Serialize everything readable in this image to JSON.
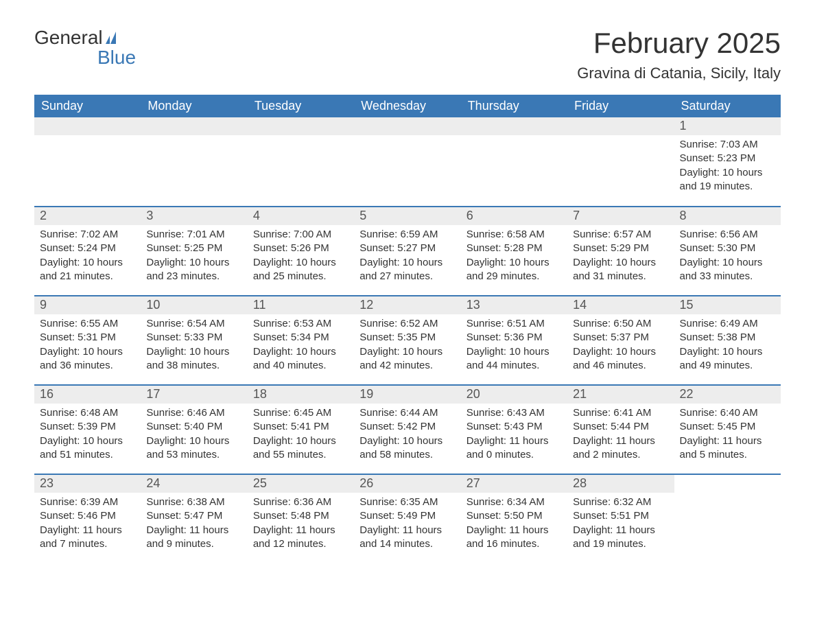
{
  "brand": {
    "word1": "General",
    "word2": "Blue",
    "accent_color": "#3a78b5"
  },
  "title": "February 2025",
  "location": "Gravina di Catania, Sicily, Italy",
  "weekdays": [
    "Sunday",
    "Monday",
    "Tuesday",
    "Wednesday",
    "Thursday",
    "Friday",
    "Saturday"
  ],
  "colors": {
    "header_bg": "#3a78b5",
    "header_text": "#ffffff",
    "row_divider": "#3a78b5",
    "daynum_bg": "#ededed",
    "body_text": "#333333",
    "page_bg": "#ffffff"
  },
  "typography": {
    "title_fontsize": 42,
    "location_fontsize": 22,
    "weekday_fontsize": 18,
    "daynum_fontsize": 18,
    "body_fontsize": 15
  },
  "layout": {
    "columns": 7,
    "rows": 5,
    "first_day_column_index": 6,
    "days_in_month": 28
  },
  "labels": {
    "sunrise": "Sunrise:",
    "sunset": "Sunset:",
    "daylight": "Daylight:"
  },
  "days": [
    {
      "n": 1,
      "sunrise": "7:03 AM",
      "sunset": "5:23 PM",
      "daylight": "10 hours and 19 minutes."
    },
    {
      "n": 2,
      "sunrise": "7:02 AM",
      "sunset": "5:24 PM",
      "daylight": "10 hours and 21 minutes."
    },
    {
      "n": 3,
      "sunrise": "7:01 AM",
      "sunset": "5:25 PM",
      "daylight": "10 hours and 23 minutes."
    },
    {
      "n": 4,
      "sunrise": "7:00 AM",
      "sunset": "5:26 PM",
      "daylight": "10 hours and 25 minutes."
    },
    {
      "n": 5,
      "sunrise": "6:59 AM",
      "sunset": "5:27 PM",
      "daylight": "10 hours and 27 minutes."
    },
    {
      "n": 6,
      "sunrise": "6:58 AM",
      "sunset": "5:28 PM",
      "daylight": "10 hours and 29 minutes."
    },
    {
      "n": 7,
      "sunrise": "6:57 AM",
      "sunset": "5:29 PM",
      "daylight": "10 hours and 31 minutes."
    },
    {
      "n": 8,
      "sunrise": "6:56 AM",
      "sunset": "5:30 PM",
      "daylight": "10 hours and 33 minutes."
    },
    {
      "n": 9,
      "sunrise": "6:55 AM",
      "sunset": "5:31 PM",
      "daylight": "10 hours and 36 minutes."
    },
    {
      "n": 10,
      "sunrise": "6:54 AM",
      "sunset": "5:33 PM",
      "daylight": "10 hours and 38 minutes."
    },
    {
      "n": 11,
      "sunrise": "6:53 AM",
      "sunset": "5:34 PM",
      "daylight": "10 hours and 40 minutes."
    },
    {
      "n": 12,
      "sunrise": "6:52 AM",
      "sunset": "5:35 PM",
      "daylight": "10 hours and 42 minutes."
    },
    {
      "n": 13,
      "sunrise": "6:51 AM",
      "sunset": "5:36 PM",
      "daylight": "10 hours and 44 minutes."
    },
    {
      "n": 14,
      "sunrise": "6:50 AM",
      "sunset": "5:37 PM",
      "daylight": "10 hours and 46 minutes."
    },
    {
      "n": 15,
      "sunrise": "6:49 AM",
      "sunset": "5:38 PM",
      "daylight": "10 hours and 49 minutes."
    },
    {
      "n": 16,
      "sunrise": "6:48 AM",
      "sunset": "5:39 PM",
      "daylight": "10 hours and 51 minutes."
    },
    {
      "n": 17,
      "sunrise": "6:46 AM",
      "sunset": "5:40 PM",
      "daylight": "10 hours and 53 minutes."
    },
    {
      "n": 18,
      "sunrise": "6:45 AM",
      "sunset": "5:41 PM",
      "daylight": "10 hours and 55 minutes."
    },
    {
      "n": 19,
      "sunrise": "6:44 AM",
      "sunset": "5:42 PM",
      "daylight": "10 hours and 58 minutes."
    },
    {
      "n": 20,
      "sunrise": "6:43 AM",
      "sunset": "5:43 PM",
      "daylight": "11 hours and 0 minutes."
    },
    {
      "n": 21,
      "sunrise": "6:41 AM",
      "sunset": "5:44 PM",
      "daylight": "11 hours and 2 minutes."
    },
    {
      "n": 22,
      "sunrise": "6:40 AM",
      "sunset": "5:45 PM",
      "daylight": "11 hours and 5 minutes."
    },
    {
      "n": 23,
      "sunrise": "6:39 AM",
      "sunset": "5:46 PM",
      "daylight": "11 hours and 7 minutes."
    },
    {
      "n": 24,
      "sunrise": "6:38 AM",
      "sunset": "5:47 PM",
      "daylight": "11 hours and 9 minutes."
    },
    {
      "n": 25,
      "sunrise": "6:36 AM",
      "sunset": "5:48 PM",
      "daylight": "11 hours and 12 minutes."
    },
    {
      "n": 26,
      "sunrise": "6:35 AM",
      "sunset": "5:49 PM",
      "daylight": "11 hours and 14 minutes."
    },
    {
      "n": 27,
      "sunrise": "6:34 AM",
      "sunset": "5:50 PM",
      "daylight": "11 hours and 16 minutes."
    },
    {
      "n": 28,
      "sunrise": "6:32 AM",
      "sunset": "5:51 PM",
      "daylight": "11 hours and 19 minutes."
    }
  ]
}
